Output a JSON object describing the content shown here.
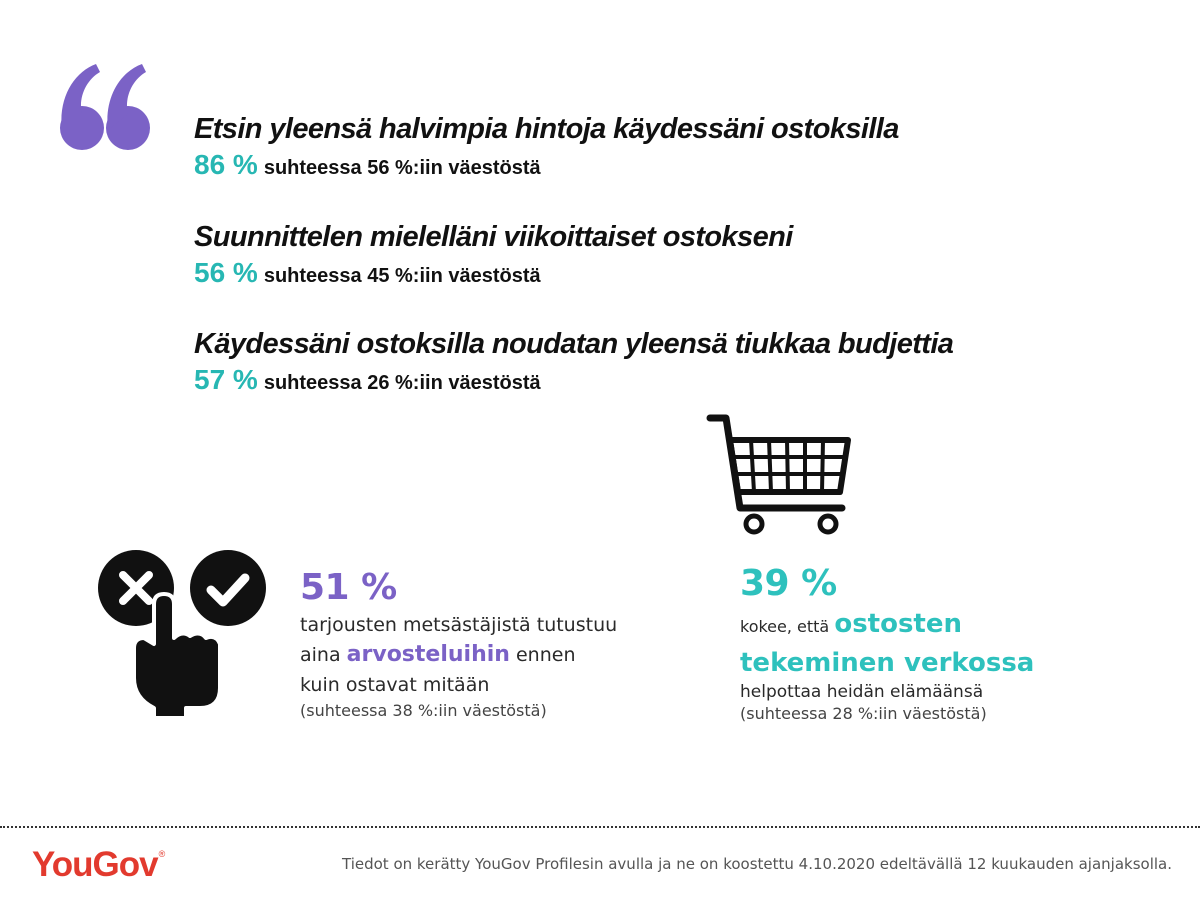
{
  "statements": [
    {
      "title": "Etsin yleensä halvimpia hintoja käydessäni ostoksilla",
      "pct": "86 %",
      "comparison": "suhteessa 56 %:iin väestöstä"
    },
    {
      "title": "Suunnittelen mielelläni viikoittaiset ostokseni",
      "pct": "56 %",
      "comparison": "suhteessa 45 %:iin väestöstä"
    },
    {
      "title": "Käydessäni ostoksilla noudatan yleensä tiukkaa budjettia",
      "pct": "57 %",
      "comparison": "suhteessa 26 %:iin väestöstä"
    }
  ],
  "left_block": {
    "pct": "51 %",
    "line1": "tarjousten metsästäjistä tutustuu",
    "line2_pre": "aina ",
    "line2_highlight": "arvosteluihin",
    "line2_post": " ennen",
    "line3": "kuin ostavat mitään",
    "note": "(suhteessa 38 %:iin väestöstä)"
  },
  "right_block": {
    "pct": "39 %",
    "line1_pre": "kokee, että ",
    "line1_highlight": "ostosten",
    "line2_highlight": "tekeminen verkossa",
    "line3": "helpottaa heidän elämäänsä",
    "note": "(suhteessa 28 %:iin väestöstä)"
  },
  "footer": {
    "logo": "YouGov",
    "logo_mark": "®",
    "note": "Tiedot on kerätty YouGov Profilesin avulla ja ne on koostettu 4.10.2020 edeltävällä 12 kuukauden ajanjaksolla."
  },
  "colors": {
    "teal": "#2ec1bd",
    "purple": "#7b62c6",
    "logo_red": "#e23a2e"
  },
  "icons": [
    "quote-icon",
    "approve-reject-hand-icon",
    "shopping-cart-icon"
  ]
}
